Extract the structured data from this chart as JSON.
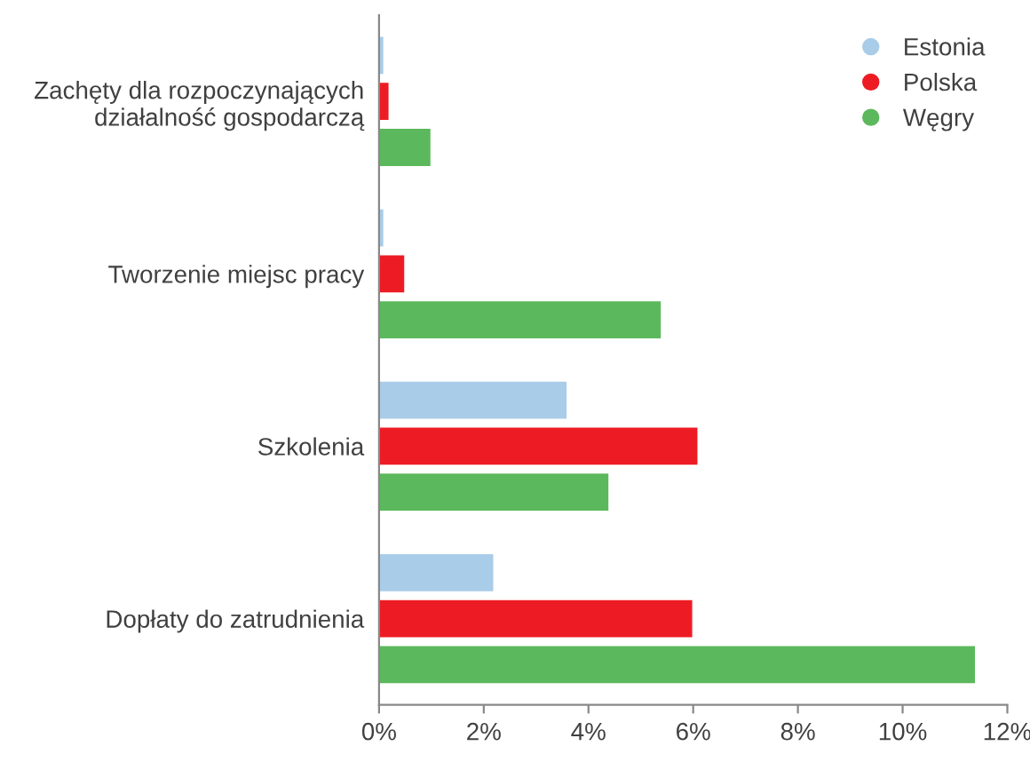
{
  "chart_data": {
    "type": "bar",
    "orientation": "horizontal",
    "categories": [
      "Zachęty dla rozpoczynających\ndziałalność gospodarczą",
      "Tworzenie miejsc pracy",
      "Szkolenia",
      "Dopłaty do zatrudnienia"
    ],
    "series": [
      {
        "name": "Estonia",
        "color": "#a9cce8",
        "values": [
          0.1,
          0.1,
          3.6,
          2.2
        ]
      },
      {
        "name": "Polska",
        "color": "#ed1c24",
        "values": [
          0.2,
          0.5,
          6.1,
          6.0
        ]
      },
      {
        "name": "Węgry",
        "color": "#5cb85c",
        "values": [
          1.0,
          5.4,
          4.4,
          11.4
        ]
      }
    ],
    "xlim": [
      0,
      12
    ],
    "xticks": [
      {
        "value": 0,
        "label": "0%"
      },
      {
        "value": 2,
        "label": "2%"
      },
      {
        "value": 4,
        "label": "4%"
      },
      {
        "value": 6,
        "label": "6%"
      },
      {
        "value": 8,
        "label": "8%"
      },
      {
        "value": 10,
        "label": "10%"
      },
      {
        "value": 12,
        "label": "12%"
      }
    ],
    "legend": "top right",
    "grid": false
  }
}
